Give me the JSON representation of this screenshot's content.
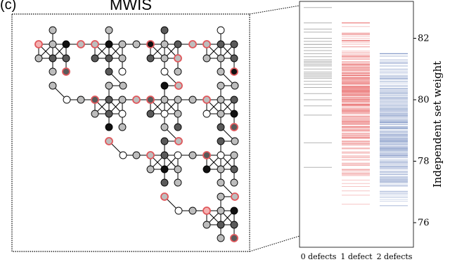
{
  "panel": {
    "label": "(c)",
    "title": "MWIS"
  },
  "colors": {
    "white": "#ffffff",
    "light": "#bdbdbd",
    "dark": "#5a5a5a",
    "black": "#111111",
    "defect_edge": "#e0575b",
    "red_node": "#f4b1b1"
  },
  "chart_data": {
    "type": "strip",
    "ylabel": "Independent set weight",
    "ylim": [
      75.2,
      83.2
    ],
    "yticks": [
      76,
      78,
      80,
      82
    ],
    "categories": [
      "0 defects",
      "1 defect",
      "2 defects"
    ],
    "series": [
      {
        "color": "#aaaaaa",
        "values": [
          83.0,
          82.5,
          82.3,
          82.2,
          82.0,
          81.9,
          81.8,
          81.8,
          81.7,
          81.6,
          81.5,
          81.4,
          81.3,
          81.25,
          81.2,
          81.15,
          81.1,
          81.0,
          80.9,
          80.85,
          80.8,
          80.75,
          80.7,
          80.6,
          80.5,
          80.4,
          80.2,
          80.0,
          79.8,
          79.5,
          78.6,
          77.8
        ]
      },
      {
        "color": "#e55656",
        "dense_range": [
          76.6,
          82.5
        ],
        "dense_center": 79.8
      },
      {
        "color": "#7a93c4",
        "dense_range": [
          75.8,
          81.5
        ],
        "dense_center": 79.0
      }
    ]
  }
}
